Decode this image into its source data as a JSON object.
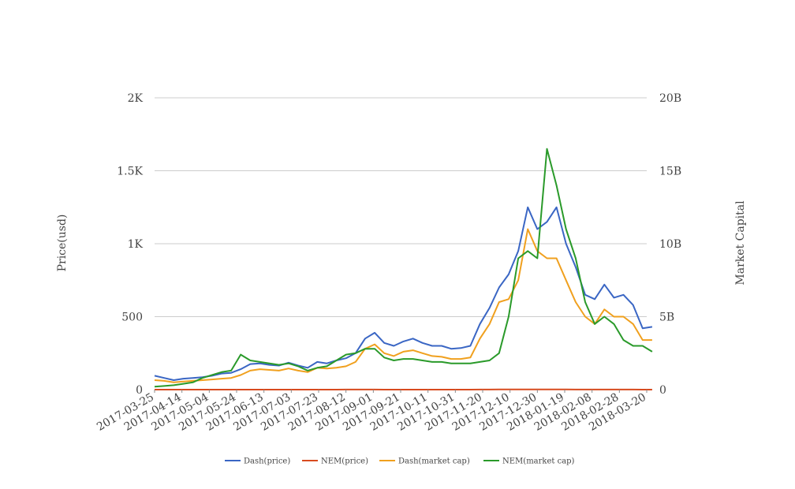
{
  "chart_data": {
    "type": "line",
    "title": "",
    "ylabel_left": "Price(usd)",
    "ylabel_right": "Market Capital",
    "grid": true,
    "legend_position": "bottom",
    "x_tick_labels": [
      "2017-03-25",
      "2017-04-14",
      "2017-05-04",
      "2017-05-24",
      "2017-06-13",
      "2017-07-03",
      "2017-07-23",
      "2017-08-12",
      "2017-09-01",
      "2017-09-21",
      "2017-10-11",
      "2017-10-31",
      "2017-11-20",
      "2017-12-10",
      "2017-12-30",
      "2018-01-19",
      "2018-02-08",
      "2018-02-28",
      "2018-03-20"
    ],
    "left_axis": {
      "ylim": [
        0,
        2000
      ],
      "ticks": [
        0,
        500,
        1000,
        1500,
        2000
      ],
      "tick_labels": [
        "0",
        "500",
        "1K",
        "1.5K",
        "2K"
      ]
    },
    "right_axis": {
      "ylim": [
        0,
        20
      ],
      "unit": "B",
      "ticks": [
        0,
        5,
        10,
        15,
        20
      ],
      "tick_labels": [
        "0",
        "5B",
        "10B",
        "15B",
        "20B"
      ]
    },
    "x": [
      "2017-03-25",
      "2017-04-01",
      "2017-04-08",
      "2017-04-15",
      "2017-04-22",
      "2017-04-29",
      "2017-05-06",
      "2017-05-13",
      "2017-05-20",
      "2017-05-27",
      "2017-06-03",
      "2017-06-10",
      "2017-06-17",
      "2017-06-24",
      "2017-07-01",
      "2017-07-08",
      "2017-07-15",
      "2017-07-22",
      "2017-07-29",
      "2017-08-05",
      "2017-08-12",
      "2017-08-19",
      "2017-08-26",
      "2017-09-02",
      "2017-09-09",
      "2017-09-16",
      "2017-09-23",
      "2017-09-30",
      "2017-10-07",
      "2017-10-14",
      "2017-10-21",
      "2017-10-28",
      "2017-11-04",
      "2017-11-11",
      "2017-11-18",
      "2017-11-25",
      "2017-12-02",
      "2017-12-09",
      "2017-12-16",
      "2017-12-23",
      "2017-12-30",
      "2018-01-06",
      "2018-01-13",
      "2018-01-20",
      "2018-01-27",
      "2018-02-03",
      "2018-02-10",
      "2018-02-17",
      "2018-02-24",
      "2018-03-03",
      "2018-03-10",
      "2018-03-17",
      "2018-03-24"
    ],
    "series": [
      {
        "name": "Dash(price)",
        "axis": "left",
        "color": "#3a66c4",
        "values": [
          95,
          80,
          65,
          75,
          80,
          85,
          95,
          110,
          115,
          140,
          175,
          180,
          170,
          165,
          185,
          165,
          150,
          190,
          180,
          200,
          215,
          250,
          350,
          390,
          320,
          300,
          330,
          350,
          320,
          300,
          300,
          280,
          285,
          300,
          450,
          560,
          700,
          790,
          950,
          1250,
          1100,
          1150,
          1250,
          1000,
          840,
          650,
          620,
          720,
          630,
          650,
          580,
          420,
          430
        ]
      },
      {
        "name": "NEM(price)",
        "axis": "left",
        "color": "#d84b1f",
        "values": [
          0.03,
          0.03,
          0.04,
          0.05,
          0.06,
          0.12,
          0.15,
          0.18,
          0.2,
          0.25,
          0.25,
          0.22,
          0.18,
          0.17,
          0.18,
          0.16,
          0.14,
          0.18,
          0.2,
          0.25,
          0.3,
          0.35,
          0.32,
          0.3,
          0.25,
          0.22,
          0.23,
          0.24,
          0.23,
          0.22,
          0.21,
          0.2,
          0.2,
          0.21,
          0.3,
          0.5,
          0.9,
          0.95,
          1.0,
          1.4,
          1.5,
          1.6,
          1.2,
          1.0,
          0.8,
          0.5,
          0.45,
          0.5,
          0.4,
          0.35,
          0.3,
          0.27,
          0.25
        ]
      },
      {
        "name": "Dash(market cap)",
        "axis": "right",
        "color": "#f0a01e",
        "values": [
          0.65,
          0.6,
          0.5,
          0.55,
          0.6,
          0.65,
          0.7,
          0.75,
          0.8,
          1.0,
          1.3,
          1.4,
          1.35,
          1.3,
          1.45,
          1.3,
          1.2,
          1.5,
          1.45,
          1.5,
          1.6,
          1.9,
          2.8,
          3.1,
          2.5,
          2.3,
          2.6,
          2.7,
          2.5,
          2.3,
          2.25,
          2.1,
          2.1,
          2.2,
          3.5,
          4.5,
          6.0,
          6.2,
          7.5,
          11.0,
          9.5,
          9.0,
          9.0,
          7.5,
          6.0,
          5.0,
          4.5,
          5.5,
          5.0,
          5.0,
          4.5,
          3.4,
          3.4
        ]
      },
      {
        "name": "NEM(market cap)",
        "axis": "right",
        "color": "#2a9a2a",
        "values": [
          0.2,
          0.25,
          0.3,
          0.4,
          0.5,
          0.8,
          1.0,
          1.2,
          1.3,
          2.4,
          2.0,
          1.9,
          1.8,
          1.7,
          1.8,
          1.6,
          1.3,
          1.5,
          1.6,
          2.0,
          2.4,
          2.5,
          2.8,
          2.8,
          2.2,
          2.0,
          2.1,
          2.1,
          2.0,
          1.9,
          1.9,
          1.8,
          1.8,
          1.8,
          1.9,
          2.0,
          2.5,
          5.0,
          9.0,
          9.5,
          9.0,
          16.5,
          14.0,
          11.0,
          9.0,
          6.0,
          4.5,
          5.0,
          4.5,
          3.4,
          3.0,
          3.0,
          2.6
        ]
      }
    ]
  }
}
